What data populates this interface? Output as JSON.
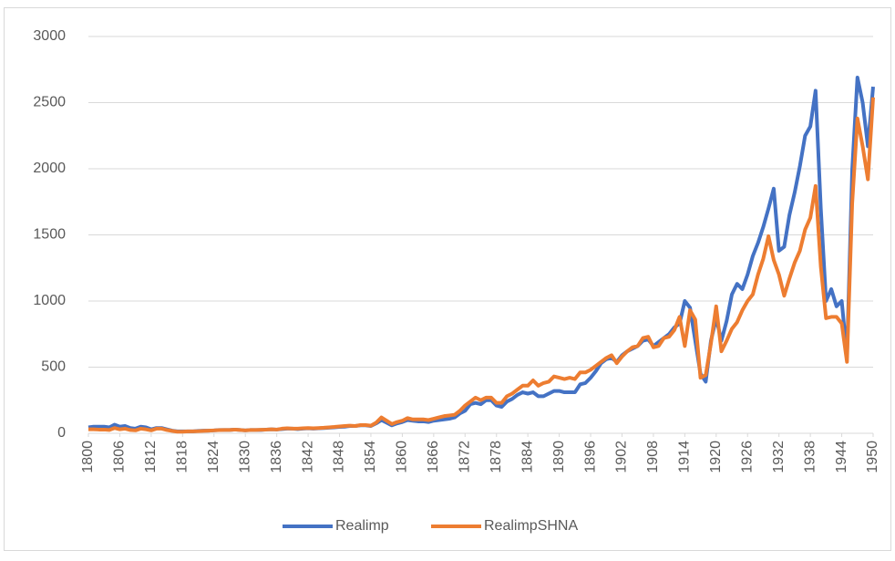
{
  "chart_data": {
    "type": "line",
    "xlim": [
      1800,
      1950
    ],
    "xticks": [
      1800,
      1806,
      1812,
      1818,
      1824,
      1830,
      1836,
      1842,
      1848,
      1854,
      1860,
      1866,
      1872,
      1878,
      1884,
      1890,
      1896,
      1902,
      1908,
      1914,
      1920,
      1926,
      1932,
      1938,
      1944,
      1950
    ],
    "ylim": [
      0,
      3000
    ],
    "yticks": [
      0,
      500,
      1000,
      1500,
      2000,
      2500,
      3000
    ],
    "grid": true,
    "legend": "bottom",
    "x": [
      1800,
      1801,
      1802,
      1803,
      1804,
      1805,
      1806,
      1807,
      1808,
      1809,
      1810,
      1811,
      1812,
      1813,
      1814,
      1815,
      1816,
      1817,
      1818,
      1819,
      1820,
      1821,
      1822,
      1823,
      1824,
      1825,
      1826,
      1827,
      1828,
      1829,
      1830,
      1831,
      1832,
      1833,
      1834,
      1835,
      1836,
      1837,
      1838,
      1839,
      1840,
      1841,
      1842,
      1843,
      1844,
      1845,
      1846,
      1847,
      1848,
      1849,
      1850,
      1851,
      1852,
      1853,
      1854,
      1855,
      1856,
      1857,
      1858,
      1859,
      1860,
      1861,
      1862,
      1863,
      1864,
      1865,
      1866,
      1867,
      1868,
      1869,
      1870,
      1871,
      1872,
      1873,
      1874,
      1875,
      1876,
      1877,
      1878,
      1879,
      1880,
      1881,
      1882,
      1883,
      1884,
      1885,
      1886,
      1887,
      1888,
      1889,
      1890,
      1891,
      1892,
      1893,
      1894,
      1895,
      1896,
      1897,
      1898,
      1899,
      1900,
      1901,
      1902,
      1903,
      1904,
      1905,
      1906,
      1907,
      1908,
      1909,
      1910,
      1911,
      1912,
      1913,
      1914,
      1915,
      1916,
      1917,
      1918,
      1919,
      1920,
      1921,
      1922,
      1923,
      1924,
      1925,
      1926,
      1927,
      1928,
      1929,
      1930,
      1931,
      1932,
      1933,
      1934,
      1935,
      1936,
      1937,
      1938,
      1939,
      1940,
      1941,
      1942,
      1943,
      1944,
      1945,
      1946,
      1947,
      1948,
      1949,
      1950
    ],
    "series": [
      {
        "name": "Realimp",
        "color": "#4472c4",
        "values": [
          45,
          50,
          50,
          50,
          45,
          65,
          50,
          55,
          40,
          35,
          50,
          45,
          30,
          40,
          40,
          30,
          20,
          15,
          15,
          15,
          15,
          18,
          20,
          20,
          22,
          25,
          25,
          25,
          28,
          25,
          22,
          25,
          25,
          25,
          28,
          30,
          28,
          32,
          35,
          35,
          32,
          35,
          38,
          35,
          38,
          40,
          42,
          45,
          48,
          50,
          55,
          55,
          60,
          60,
          55,
          75,
          100,
          80,
          60,
          75,
          85,
          100,
          95,
          90,
          90,
          85,
          95,
          100,
          105,
          110,
          120,
          150,
          170,
          220,
          230,
          220,
          250,
          250,
          210,
          200,
          240,
          260,
          290,
          310,
          300,
          310,
          280,
          280,
          300,
          320,
          320,
          310,
          310,
          310,
          370,
          380,
          420,
          470,
          530,
          560,
          570,
          540,
          590,
          620,
          640,
          660,
          700,
          710,
          660,
          690,
          720,
          750,
          800,
          830,
          1000,
          950,
          700,
          450,
          390,
          700,
          870,
          700,
          850,
          1050,
          1130,
          1090,
          1200,
          1340,
          1440,
          1560,
          1700,
          1850,
          1380,
          1410,
          1650,
          1820,
          2020,
          2250,
          2320,
          2590,
          1700,
          1000,
          1090,
          960,
          1000,
          580,
          1990,
          2690,
          2500,
          2170,
          2620
        ]
      },
      {
        "name": "RealimpSHNA",
        "color": "#ed7d31",
        "values": [
          30,
          30,
          28,
          28,
          25,
          40,
          30,
          35,
          25,
          22,
          35,
          30,
          22,
          35,
          35,
          25,
          18,
          12,
          12,
          15,
          15,
          16,
          18,
          20,
          22,
          24,
          25,
          25,
          28,
          25,
          22,
          25,
          25,
          27,
          28,
          30,
          28,
          35,
          38,
          35,
          35,
          38,
          40,
          38,
          40,
          42,
          45,
          48,
          52,
          55,
          58,
          55,
          62,
          62,
          58,
          80,
          120,
          95,
          70,
          85,
          95,
          115,
          105,
          105,
          105,
          100,
          110,
          120,
          130,
          135,
          140,
          170,
          210,
          240,
          270,
          250,
          270,
          270,
          230,
          230,
          280,
          300,
          330,
          360,
          360,
          400,
          360,
          380,
          390,
          430,
          420,
          410,
          420,
          410,
          460,
          460,
          480,
          510,
          540,
          570,
          590,
          530,
          580,
          620,
          650,
          660,
          720,
          730,
          650,
          660,
          720,
          730,
          780,
          880,
          660,
          930,
          860,
          420,
          440,
          680,
          960,
          620,
          700,
          790,
          840,
          930,
          1000,
          1050,
          1200,
          1320,
          1490,
          1310,
          1200,
          1040,
          1170,
          1290,
          1380,
          1540,
          1630,
          1870,
          1260,
          870,
          880,
          880,
          830,
          540,
          1740,
          2380,
          2170,
          1920,
          2540
        ]
      }
    ]
  }
}
